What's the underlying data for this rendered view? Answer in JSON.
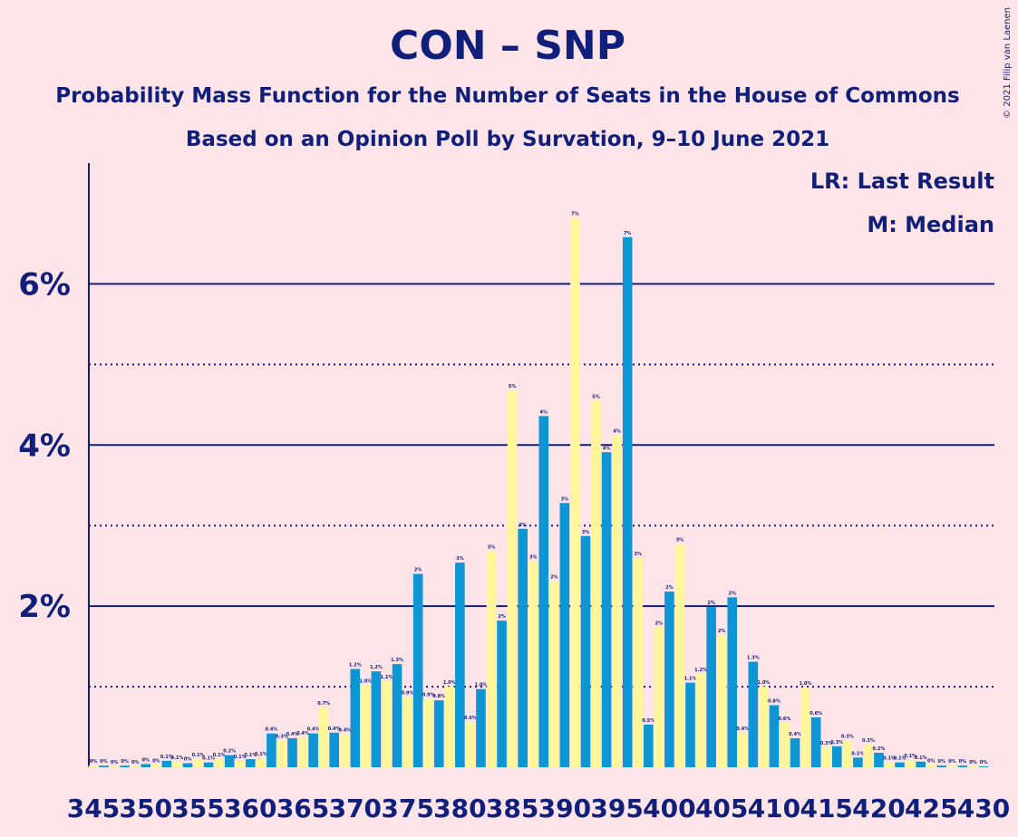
{
  "chart_data": {
    "type": "bar",
    "title": "CON – SNP",
    "subtitle": "Probability Mass Function for the Number of Seats in the House of Commons",
    "subtitle2": "Based on an Opinion Poll by Survation, 9–10 June 2021",
    "legend_lines": [
      "LR: Last Result",
      "M: Median"
    ],
    "copyright": "© 2021 Filip van Laenen",
    "x": [
      345,
      346,
      347,
      348,
      349,
      350,
      351,
      352,
      353,
      354,
      355,
      356,
      357,
      358,
      359,
      360,
      361,
      362,
      363,
      364,
      365,
      366,
      367,
      368,
      369,
      370,
      371,
      372,
      373,
      374,
      375,
      376,
      377,
      378,
      379,
      380,
      381,
      382,
      383,
      384,
      385,
      386,
      387,
      388,
      389,
      390,
      391,
      392,
      393,
      394,
      395,
      396,
      397,
      398,
      399,
      400,
      401,
      402,
      403,
      404,
      405,
      406,
      407,
      408,
      409,
      410,
      411,
      412,
      413,
      414,
      415,
      416,
      417,
      418,
      419,
      420,
      421,
      422,
      423,
      424,
      425,
      426,
      427,
      428,
      429,
      430
    ],
    "values": [
      0.02,
      0.02,
      0.01,
      0.02,
      0.01,
      0.04,
      0.03,
      0.08,
      0.07,
      0.05,
      0.1,
      0.06,
      0.1,
      0.15,
      0.08,
      0.1,
      0.11,
      0.42,
      0.33,
      0.36,
      0.37,
      0.42,
      0.74,
      0.43,
      0.41,
      1.22,
      1.02,
      1.19,
      1.07,
      1.28,
      0.87,
      2.4,
      0.85,
      0.83,
      1.0,
      2.54,
      0.56,
      0.97,
      2.68,
      1.82,
      4.68,
      2.96,
      2.56,
      4.36,
      2.31,
      3.28,
      6.82,
      2.87,
      4.55,
      3.91,
      4.12,
      6.58,
      2.6,
      0.53,
      1.74,
      2.18,
      2.77,
      1.05,
      1.16,
      1.99,
      1.64,
      2.11,
      0.43,
      1.31,
      1.0,
      0.77,
      0.55,
      0.36,
      0.99,
      0.62,
      0.25,
      0.26,
      0.33,
      0.12,
      0.28,
      0.18,
      0.06,
      0.06,
      0.09,
      0.07,
      0.03,
      0.02,
      0.02,
      0.02,
      0.01,
      0.01
    ],
    "value_labels": [
      "0%",
      "0%",
      "0%",
      "0%",
      "0%",
      "0%",
      "0%",
      "0.1%",
      "0.1%",
      "0%",
      "0.1%",
      "0.1%",
      "0.1%",
      "0.2%",
      "0.1%",
      "0.1%",
      "0.1%",
      "0.4%",
      "0.3%",
      "0.4%",
      "0.4%",
      "0.4%",
      "0.7%",
      "0.4%",
      "0.4%",
      "1.2%",
      "1.0%",
      "1.2%",
      "1.1%",
      "1.3%",
      "0.9%",
      "2%",
      "0.9%",
      "0.8%",
      "1.0%",
      "3%",
      "0.6%",
      "1.0%",
      "3%",
      "2%",
      "5%",
      "3%",
      "3%",
      "4%",
      "2%",
      "3%",
      "7%",
      "3%",
      "5%",
      "4%",
      "4%",
      "7%",
      "3%",
      "0.5%",
      "2%",
      "2%",
      "3%",
      "1.1%",
      "1.2%",
      "2%",
      "2%",
      "2%",
      "0.4%",
      "1.3%",
      "1.0%",
      "0.8%",
      "0.6%",
      "0.4%",
      "1.0%",
      "0.6%",
      "0.3%",
      "0.3%",
      "0.3%",
      "0.1%",
      "0.3%",
      "0.2%",
      "0.1%",
      "0.1%",
      "0.1%",
      "0.1%",
      "0%",
      "0%",
      "0%",
      "0%",
      "0%",
      "0%"
    ],
    "bar_colors": [
      "#fff59a",
      "#0e96d4"
    ],
    "xlim": [
      345,
      430
    ],
    "xticks": [
      345,
      350,
      355,
      360,
      365,
      370,
      375,
      380,
      385,
      390,
      395,
      400,
      405,
      410,
      415,
      420,
      425,
      430
    ],
    "ylim": [
      0,
      7.5
    ],
    "yticks": [
      {
        "value": 2,
        "label": "2%"
      },
      {
        "value": 4,
        "label": "4%"
      },
      {
        "value": 6,
        "label": "6%"
      }
    ],
    "minor_gridlines": [
      1,
      3,
      5
    ],
    "grid": true
  }
}
